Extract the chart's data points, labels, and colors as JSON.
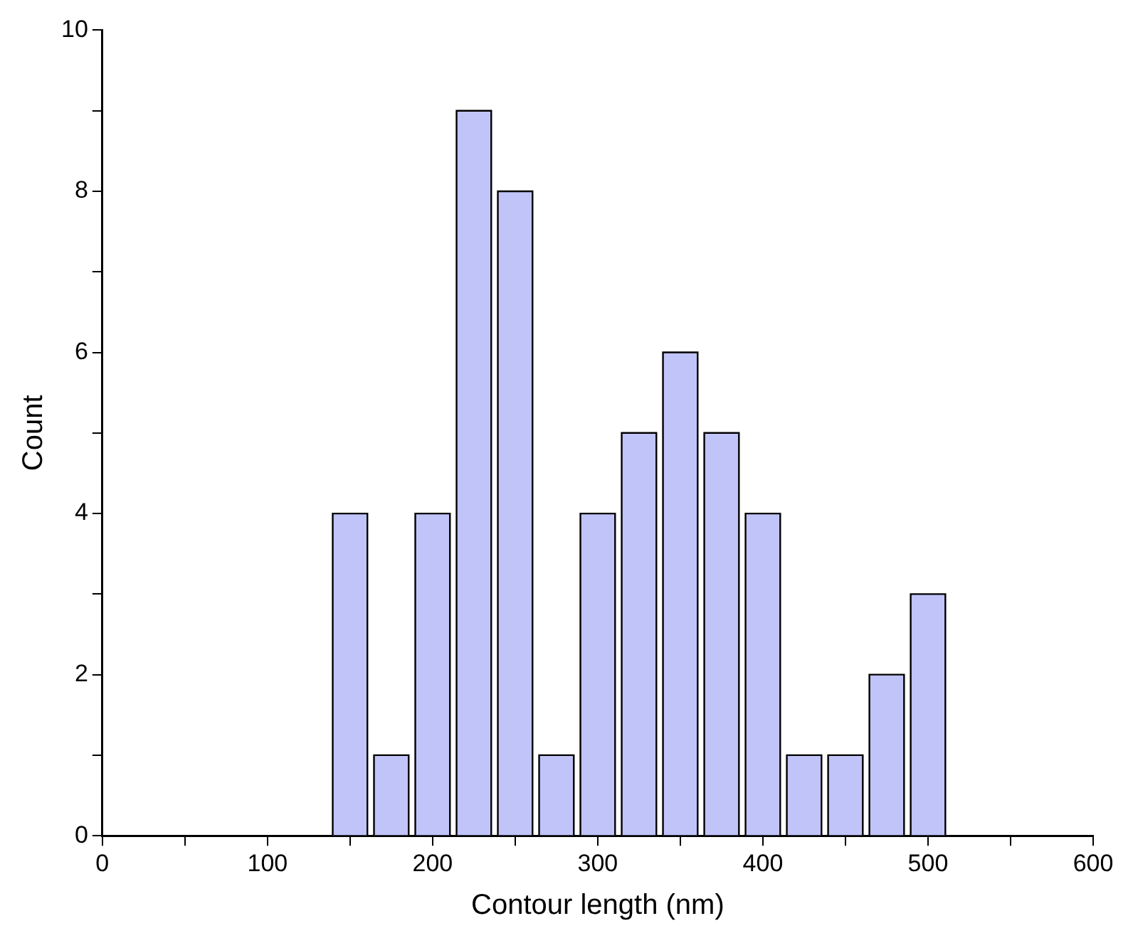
{
  "chart_data": {
    "type": "histogram",
    "xlabel": "Contour length (nm)",
    "ylabel": "Count",
    "bins": [
      137.5,
      162.5,
      187.5,
      212.5,
      237.5,
      262.5,
      287.5,
      312.5,
      337.5,
      362.5,
      387.5,
      412.5,
      437.5,
      462.5,
      487.5,
      512.5
    ],
    "values": [
      4,
      1,
      4,
      9,
      8,
      1,
      4,
      5,
      6,
      5,
      4,
      1,
      1,
      2,
      3
    ],
    "color": "#c0c4f8",
    "xlim": [
      0,
      600
    ],
    "xticks": [
      0,
      {
        "value": 50,
        "label": null
      },
      100,
      {
        "value": 150,
        "label": null
      },
      200,
      {
        "value": 250,
        "label": null
      },
      300,
      {
        "value": 350,
        "label": null
      },
      400,
      {
        "value": 450,
        "label": null
      },
      500,
      {
        "value": 550,
        "label": null
      },
      600
    ],
    "ylim": [
      0,
      10
    ],
    "yticks": [
      0,
      {
        "value": 1,
        "label": null
      },
      2,
      {
        "value": 3,
        "label": null
      },
      4,
      {
        "value": 5,
        "label": null
      },
      6,
      {
        "value": 7,
        "label": null
      },
      8,
      {
        "value": 9,
        "label": null
      },
      10
    ]
  }
}
